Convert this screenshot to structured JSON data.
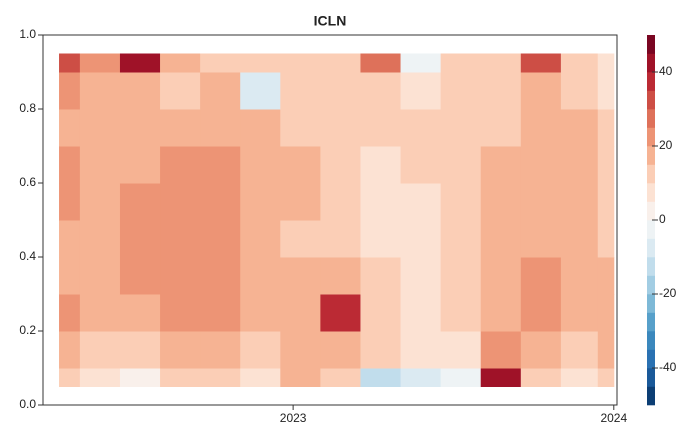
{
  "chart_data": {
    "type": "heatmap",
    "title": "ICLN",
    "x": [
      2022.27,
      2022.4,
      2022.52,
      2022.65,
      2022.77,
      2022.9,
      2023.02,
      2023.15,
      2023.27,
      2023.4,
      2023.52,
      2023.65,
      2023.77,
      2023.9,
      2024.0
    ],
    "y": [
      0.05,
      0.15,
      0.25,
      0.35,
      0.45,
      0.55,
      0.65,
      0.75,
      0.85,
      0.95
    ],
    "z": [
      [
        10,
        5,
        0,
        10,
        10,
        5,
        15,
        10,
        -15,
        -10,
        -5,
        40,
        10,
        5,
        10
      ],
      [
        15,
        10,
        10,
        15,
        15,
        10,
        15,
        15,
        10,
        5,
        5,
        20,
        15,
        10,
        15
      ],
      [
        20,
        15,
        15,
        20,
        20,
        15,
        15,
        35,
        10,
        5,
        10,
        15,
        20,
        15,
        15
      ],
      [
        15,
        15,
        20,
        20,
        20,
        15,
        15,
        15,
        10,
        5,
        10,
        15,
        20,
        15,
        15
      ],
      [
        15,
        15,
        20,
        20,
        20,
        15,
        10,
        10,
        5,
        5,
        10,
        15,
        15,
        15,
        10
      ],
      [
        20,
        15,
        20,
        20,
        20,
        15,
        15,
        10,
        5,
        5,
        10,
        15,
        15,
        15,
        10
      ],
      [
        20,
        15,
        15,
        20,
        20,
        15,
        15,
        10,
        5,
        10,
        10,
        15,
        15,
        15,
        10
      ],
      [
        15,
        15,
        15,
        15,
        15,
        15,
        10,
        10,
        10,
        10,
        10,
        10,
        15,
        15,
        10
      ],
      [
        20,
        15,
        15,
        10,
        15,
        -10,
        10,
        10,
        10,
        5,
        10,
        10,
        15,
        10,
        5
      ],
      [
        30,
        20,
        40,
        15,
        10,
        10,
        10,
        10,
        25,
        -5,
        10,
        10,
        30,
        10,
        5
      ]
    ],
    "xlim": [
      2022.22,
      2024.01
    ],
    "xticks": [
      2023,
      2024
    ],
    "ylim": [
      0,
      1
    ],
    "yticks": [
      {
        "value": 0,
        "label": "0.0"
      },
      0.2,
      0.4,
      0.6,
      0.8,
      {
        "value": 1,
        "label": "1.0"
      }
    ],
    "zlim": [
      -50,
      50
    ],
    "zticks": [
      -40,
      -20,
      0,
      20,
      40
    ],
    "level_step": 5,
    "colormap": [
      "#053061",
      "#2166ac",
      "#4393c3",
      "#92c5de",
      "#d1e5f0",
      "#f7f7f7",
      "#fddbc7",
      "#f4a582",
      "#d6604d",
      "#b2182b",
      "#67001f"
    ]
  }
}
